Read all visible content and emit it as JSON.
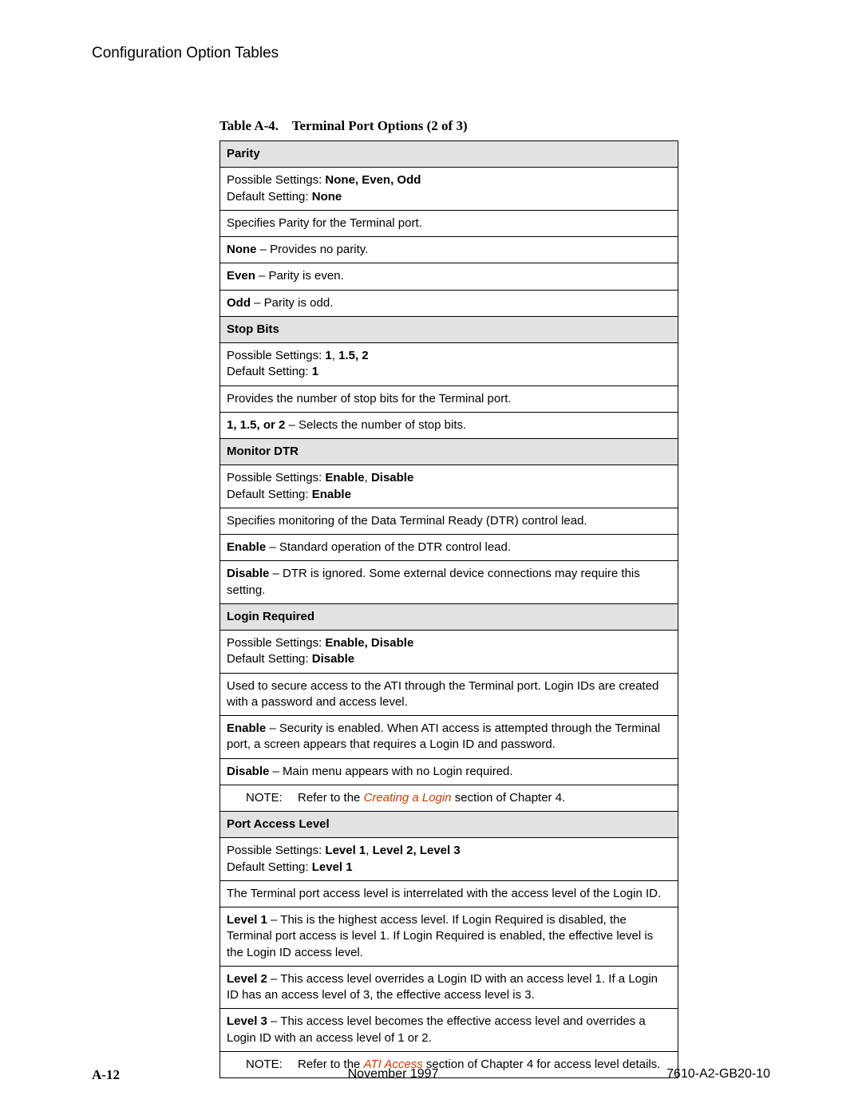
{
  "header": {
    "title": "Configuration Option Tables"
  },
  "caption": {
    "prefix": "Table A-4.",
    "title": "Terminal Port Options (2 of 3)"
  },
  "parity": {
    "head": "Parity",
    "possible_label": "Possible Settings: ",
    "possible_value": "None, Even, Odd",
    "default_label": "Default Setting: ",
    "default_value": "None",
    "desc": "Specifies Parity for the Terminal port.",
    "none_b": "None",
    "none_t": " – Provides no parity.",
    "even_b": "Even",
    "even_t": " – Parity is even.",
    "odd_b": "Odd",
    "odd_t": " – Parity is odd."
  },
  "stopbits": {
    "head": "Stop Bits",
    "possible_label": "Possible Settings: ",
    "possible_value": "1",
    "possible_sep": ", ",
    "possible_value2": "1.5, 2",
    "default_label": "Default Setting: ",
    "default_value": "1",
    "desc": "Provides the number of stop bits for the Terminal port.",
    "sel_b": "1, 1.5, or 2",
    "sel_t": " – Selects the number of stop bits."
  },
  "dtr": {
    "head": "Monitor DTR",
    "possible_label": "Possible Settings: ",
    "possible_value": "Enable",
    "possible_sep": ", ",
    "possible_value2": "Disable",
    "default_label": "Default Setting: ",
    "default_value": "Enable",
    "desc": "Specifies monitoring of the Data Terminal Ready (DTR) control lead.",
    "en_b": "Enable",
    "en_t": " – Standard operation of the DTR control lead.",
    "dis_b": "Disable",
    "dis_t": " – DTR is ignored. Some external device connections may require this setting."
  },
  "login": {
    "head": "Login Required",
    "possible_label": "Possible Settings: ",
    "possible_value": "Enable, Disable",
    "default_label": "Default Setting: ",
    "default_value": "Disable",
    "desc": "Used to secure access to the ATI through the Terminal port. Login IDs are created with a password and access level.",
    "en_b": "Enable",
    "en_t": " – Security is enabled. When ATI access is attempted through the Terminal port, a screen appears that requires a Login ID and password.",
    "dis_b": "Disable",
    "dis_t": " – Main menu appears with no Login required.",
    "note_label": "NOTE: ",
    "note_pre": "Refer to the ",
    "note_link": "Creating a Login",
    "note_post": " section of Chapter 4."
  },
  "access": {
    "head": "Port Access Level",
    "possible_label": "Possible Settings: ",
    "possible_value": "Level 1",
    "possible_sep": ", ",
    "possible_value2": "Level 2, Level 3",
    "default_label": "Default Setting: ",
    "default_value": "Level 1",
    "desc": "The Terminal port access level is interrelated with the access level of the Login ID.",
    "l1_b": "Level 1",
    "l1_t": " – This is the highest access level. If Login Required is disabled, the Terminal port access is level 1. If Login Required is enabled, the effective level is the Login ID access level.",
    "l2_b": "Level 2",
    "l2_t": " – This access level overrides a Login ID with an access level 1. If a Login ID has an access level of 3, the effective access level is 3.",
    "l3_b": "Level 3",
    "l3_t": " – This access level becomes the effective access level and overrides a Login ID with an access level of 1 or 2.",
    "note_label": "NOTE: ",
    "note_pre": "Refer to the ",
    "note_link": "ATI Access",
    "note_post": " section of Chapter 4 for access level details."
  },
  "footer": {
    "page": "A-12",
    "date": "November 1997",
    "doc": "7610-A2-GB20-10"
  }
}
